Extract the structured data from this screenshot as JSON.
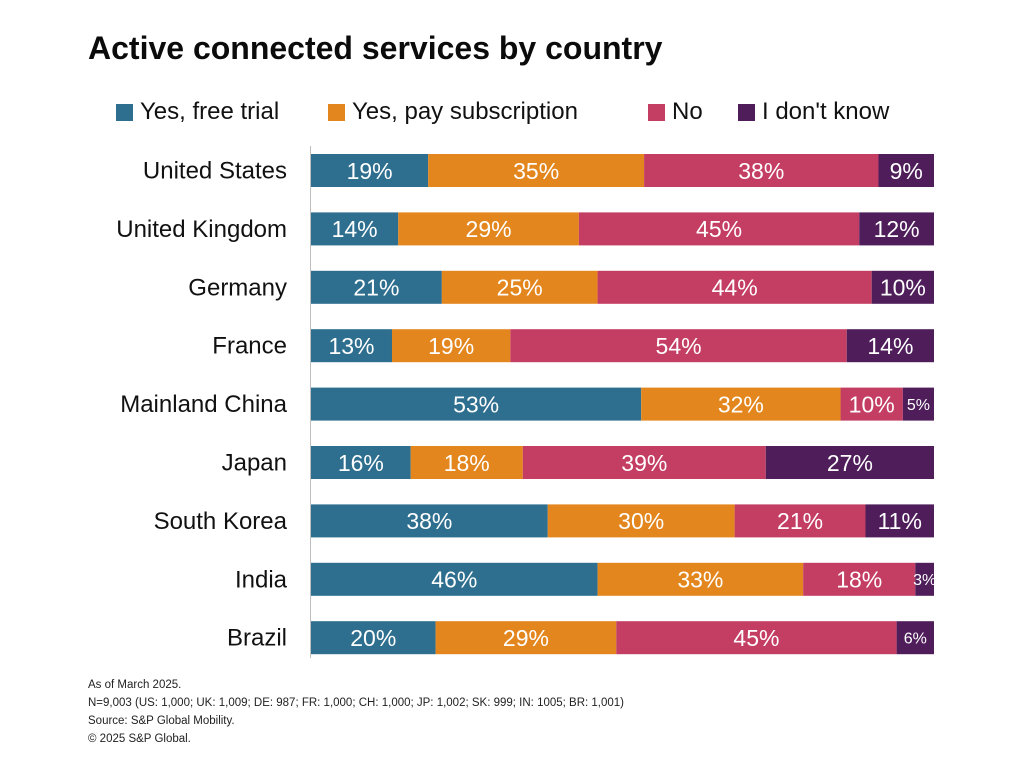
{
  "colors": {
    "free_trial": "#2e6e8e",
    "pay_subscription": "#e3861d",
    "no": "#c43d63",
    "dont_know": "#4e1d5a",
    "axis": "#bfbfbf"
  },
  "chart_data": {
    "type": "bar",
    "orientation": "horizontal",
    "stacked": true,
    "title": "Active connected services by country",
    "categories": [
      "United States",
      "United Kingdom",
      "Germany",
      "France",
      "Mainland China",
      "Japan",
      "South Korea",
      "India",
      "Brazil"
    ],
    "series": [
      {
        "name": "Yes, free trial",
        "color_key": "free_trial",
        "values": [
          19,
          14,
          21,
          13,
          53,
          16,
          38,
          46,
          20
        ]
      },
      {
        "name": "Yes, pay subscription",
        "color_key": "pay_subscription",
        "values": [
          35,
          29,
          25,
          19,
          32,
          18,
          30,
          33,
          29
        ]
      },
      {
        "name": "No",
        "color_key": "no",
        "values": [
          38,
          45,
          44,
          54,
          10,
          39,
          21,
          18,
          45
        ]
      },
      {
        "name": "I don't know",
        "color_key": "dont_know",
        "values": [
          9,
          12,
          10,
          14,
          5,
          27,
          11,
          3,
          6
        ]
      }
    ],
    "value_suffix": "%",
    "legend_position": "top",
    "grid": false
  },
  "footer": {
    "date": "As of March 2025.",
    "sample": "N=9,003 (US: 1,000; UK: 1,009; DE: 987; FR: 1,000; CH: 1,000; JP: 1,002; SK: 999; IN: 1005; BR: 1,001)",
    "source": "Source: S&P Global Mobility.",
    "copyright": "© 2025 S&P Global."
  }
}
